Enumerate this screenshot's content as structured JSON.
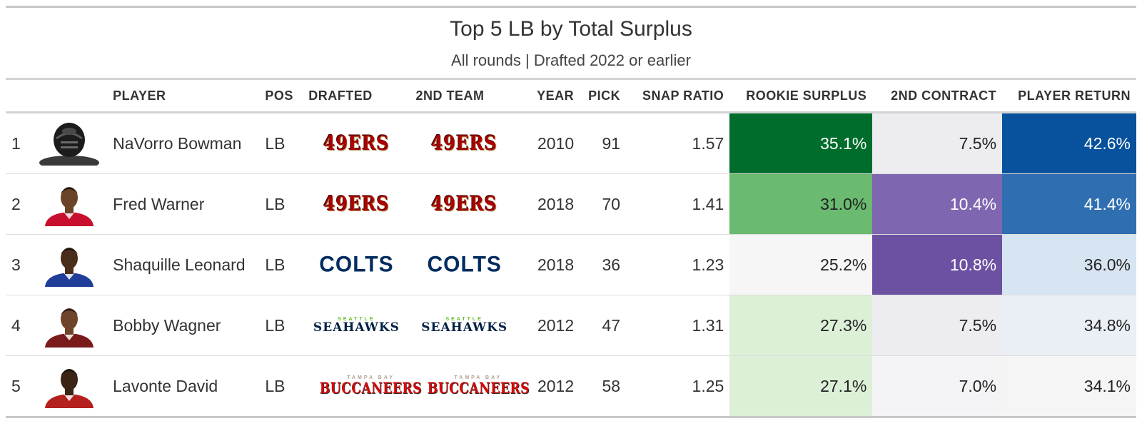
{
  "title": "Top 5 LB by Total Surplus",
  "subtitle": "All rounds | Drafted 2022 or earlier",
  "columns": {
    "rank": "",
    "headshot": "",
    "player": "PLAYER",
    "pos": "POS",
    "drafted": "DRAFTED",
    "second_team": "2ND TEAM",
    "year": "YEAR",
    "pick": "PICK",
    "snap_ratio": "SNAP RATIO",
    "rookie_surplus": "ROOKIE SURPLUS",
    "second_contract": "2ND CONTRACT",
    "player_return": "PLAYER RETURN"
  },
  "teams": {
    "49ers": {
      "text": "49ERS"
    },
    "colts": {
      "text": "COLTS"
    },
    "seahawks": {
      "small": "SEATTLE",
      "big": "SEAHAWKS"
    },
    "bucs": {
      "small": "TAMPA BAY",
      "big": "BUCCANEERS"
    }
  },
  "rows": [
    {
      "rank": "1",
      "player": "NaVorro Bowman",
      "pos": "LB",
      "year": "2010",
      "pick": "91",
      "snap_ratio": "1.57",
      "rookie_surplus": "35.1%",
      "second_contract": "7.5%",
      "player_return": "42.6%",
      "colors": {
        "rookie_bg": "#006d2c",
        "rookie_fg": "#ffffff",
        "contract_bg": "#ececf1",
        "contract_fg": "#222222",
        "return_bg": "#08519c",
        "return_fg": "#ffffff"
      },
      "headshot": {
        "jersey": "#202020",
        "skin": "#1a1a1a"
      }
    },
    {
      "rank": "2",
      "player": "Fred Warner",
      "pos": "LB",
      "year": "2018",
      "pick": "70",
      "snap_ratio": "1.41",
      "rookie_surplus": "31.0%",
      "second_contract": "10.4%",
      "player_return": "41.4%",
      "colors": {
        "rookie_bg": "#6aba70",
        "rookie_fg": "#222222",
        "contract_bg": "#7e67b0",
        "contract_fg": "#ffffff",
        "return_bg": "#2f6fb1",
        "return_fg": "#ffffff"
      },
      "headshot": {
        "jersey": "#c8102e",
        "skin": "#6b4329"
      }
    },
    {
      "rank": "3",
      "player": "Shaquille Leonard",
      "pos": "LB",
      "year": "2018",
      "pick": "36",
      "snap_ratio": "1.23",
      "rookie_surplus": "25.2%",
      "second_contract": "10.8%",
      "player_return": "36.0%",
      "colors": {
        "rookie_bg": "#f6f6f6",
        "rookie_fg": "#222222",
        "contract_bg": "#6c51a3",
        "contract_fg": "#ffffff",
        "return_bg": "#d7e4f2",
        "return_fg": "#222222"
      },
      "headshot": {
        "jersey": "#1f3d99",
        "skin": "#4a2e1c"
      }
    },
    {
      "rank": "4",
      "player": "Bobby Wagner",
      "pos": "LB",
      "year": "2012",
      "pick": "47",
      "snap_ratio": "1.31",
      "rookie_surplus": "27.3%",
      "second_contract": "7.5%",
      "player_return": "34.8%",
      "colors": {
        "rookie_bg": "#dbf0d6",
        "rookie_fg": "#222222",
        "contract_bg": "#ececf1",
        "contract_fg": "#222222",
        "return_bg": "#eaeef5",
        "return_fg": "#222222"
      },
      "headshot": {
        "jersey": "#7a1a1a",
        "skin": "#6e452a"
      }
    },
    {
      "rank": "5",
      "player": "Lavonte David",
      "pos": "LB",
      "year": "2012",
      "pick": "58",
      "snap_ratio": "1.25",
      "rookie_surplus": "27.1%",
      "second_contract": "7.0%",
      "player_return": "34.1%",
      "colors": {
        "rookie_bg": "#dcf0d8",
        "rookie_fg": "#222222",
        "contract_bg": "#f4f4f6",
        "contract_fg": "#222222",
        "return_bg": "#f5f5f5",
        "return_fg": "#222222"
      },
      "headshot": {
        "jersey": "#b3201e",
        "skin": "#3b2416"
      }
    }
  ],
  "row_teams": [
    {
      "drafted": "49ers",
      "second": "49ers"
    },
    {
      "drafted": "49ers",
      "second": "49ers"
    },
    {
      "drafted": "colts",
      "second": "colts"
    },
    {
      "drafted": "seahawks",
      "second": "seahawks"
    },
    {
      "drafted": "bucs",
      "second": "bucs"
    }
  ]
}
